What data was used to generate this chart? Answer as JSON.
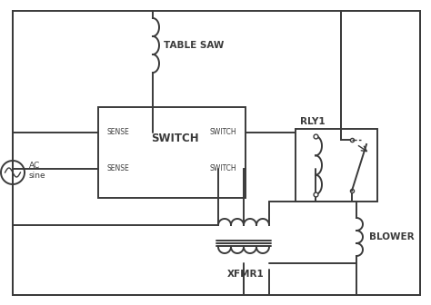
{
  "bg_color": "#ffffff",
  "line_color": "#3a3a3a",
  "line_width": 1.4,
  "labels": {
    "table_saw": "TABLE SAW",
    "switch_title": "SWITCH",
    "sense1": "SENSE",
    "sense2": "SENSE",
    "switch1": "SWITCH",
    "switch2": "SWITCH",
    "rly1": "RLY1",
    "xfmr1": "XFMR1",
    "blower": "BLOWER",
    "ac": "AC\nsine"
  },
  "font_size": 6.5,
  "font_size_switch": 8.5,
  "font_size_label": 7.5
}
